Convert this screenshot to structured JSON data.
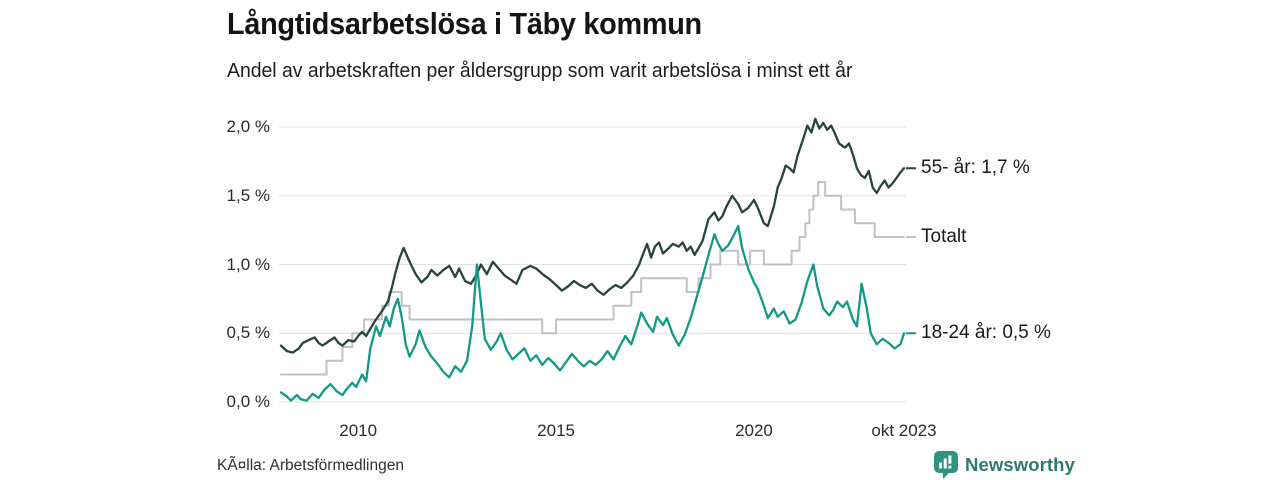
{
  "header": {
    "title": "Långtidsarbetslösa i Täby kommun",
    "subtitle": "Andel av arbetskraften per åldersgrupp som varit arbetslösa i minst ett år"
  },
  "footer": {
    "source": "KÃ¤lla: Arbetsförmedlingen",
    "brand": "Newsworthy"
  },
  "colors": {
    "series_55": "#26453c",
    "series_total": "#bfc0c8",
    "series_18_24": "#129a86",
    "gridline": "#e3e3e5",
    "brand_teal": "#2d7a72",
    "brand_icon": "#2f9283",
    "text": "#1a1a1a"
  },
  "chart_data": {
    "type": "line",
    "title": "Långtidsarbetslösa i Täby kommun",
    "subtitle": "Andel av arbetskraften per åldersgrupp som varit arbetslösa i minst ett år",
    "xlabel": "",
    "ylabel": "",
    "unit": "%",
    "grid": "horizontal",
    "legend_position": "right-end-labels",
    "x_axis": {
      "range": [
        2008.05,
        2023.79
      ],
      "ticks": [
        {
          "x": 2010,
          "label": "2010"
        },
        {
          "x": 2015,
          "label": "2015"
        },
        {
          "x": 2020,
          "label": "2020"
        },
        {
          "x": 2023.79,
          "label": "okt 2023"
        }
      ]
    },
    "y_axis": {
      "range": [
        0,
        2.0
      ],
      "ticks": [
        {
          "y": 0.0,
          "label": "0,0 %"
        },
        {
          "y": 0.5,
          "label": "0,5 %"
        },
        {
          "y": 1.0,
          "label": "1,0 %"
        },
        {
          "y": 1.5,
          "label": "1,5 %"
        },
        {
          "y": 2.0,
          "label": "2,0 %"
        }
      ]
    },
    "series": [
      {
        "name": "Totalt",
        "end_label": "Totalt",
        "color": "#bfc0c8",
        "step": true,
        "last_value": 1.2,
        "points": [
          [
            2008.05,
            0.2
          ],
          [
            2009.2,
            0.3
          ],
          [
            2009.6,
            0.4
          ],
          [
            2009.85,
            0.5
          ],
          [
            2010.15,
            0.6
          ],
          [
            2010.6,
            0.7
          ],
          [
            2010.78,
            0.8
          ],
          [
            2011.1,
            0.7
          ],
          [
            2011.3,
            0.6
          ],
          [
            2014.65,
            0.5
          ],
          [
            2015.0,
            0.6
          ],
          [
            2016.45,
            0.7
          ],
          [
            2016.9,
            0.8
          ],
          [
            2017.15,
            0.9
          ],
          [
            2018.3,
            0.8
          ],
          [
            2018.6,
            0.9
          ],
          [
            2018.9,
            1.0
          ],
          [
            2019.15,
            1.1
          ],
          [
            2019.6,
            1.0
          ],
          [
            2019.9,
            1.1
          ],
          [
            2020.25,
            1.0
          ],
          [
            2020.95,
            1.1
          ],
          [
            2021.15,
            1.2
          ],
          [
            2021.3,
            1.3
          ],
          [
            2021.4,
            1.4
          ],
          [
            2021.5,
            1.5
          ],
          [
            2021.62,
            1.6
          ],
          [
            2021.8,
            1.5
          ],
          [
            2022.2,
            1.4
          ],
          [
            2022.55,
            1.3
          ],
          [
            2023.05,
            1.2
          ],
          [
            2023.79,
            1.2
          ]
        ]
      },
      {
        "name": "55- år",
        "end_label": "55- år: 1,7 %",
        "color": "#26453c",
        "step": false,
        "last_value": 1.7,
        "points": [
          [
            2008.05,
            0.41
          ],
          [
            2008.2,
            0.37
          ],
          [
            2008.35,
            0.36
          ],
          [
            2008.5,
            0.39
          ],
          [
            2008.6,
            0.43
          ],
          [
            2008.75,
            0.45
          ],
          [
            2008.9,
            0.47
          ],
          [
            2009.0,
            0.43
          ],
          [
            2009.1,
            0.41
          ],
          [
            2009.25,
            0.44
          ],
          [
            2009.4,
            0.47
          ],
          [
            2009.5,
            0.43
          ],
          [
            2009.6,
            0.41
          ],
          [
            2009.75,
            0.45
          ],
          [
            2009.9,
            0.44
          ],
          [
            2010.0,
            0.48
          ],
          [
            2010.1,
            0.51
          ],
          [
            2010.2,
            0.48
          ],
          [
            2010.3,
            0.53
          ],
          [
            2010.45,
            0.6
          ],
          [
            2010.6,
            0.66
          ],
          [
            2010.75,
            0.73
          ],
          [
            2010.85,
            0.83
          ],
          [
            2010.95,
            0.95
          ],
          [
            2011.05,
            1.05
          ],
          [
            2011.15,
            1.12
          ],
          [
            2011.3,
            1.02
          ],
          [
            2011.45,
            0.93
          ],
          [
            2011.6,
            0.87
          ],
          [
            2011.75,
            0.91
          ],
          [
            2011.85,
            0.96
          ],
          [
            2012.0,
            0.92
          ],
          [
            2012.15,
            0.96
          ],
          [
            2012.3,
            0.99
          ],
          [
            2012.45,
            0.91
          ],
          [
            2012.55,
            0.97
          ],
          [
            2012.7,
            0.88
          ],
          [
            2012.85,
            0.86
          ],
          [
            2013.0,
            0.93
          ],
          [
            2013.1,
            1.0
          ],
          [
            2013.25,
            0.93
          ],
          [
            2013.4,
            1.02
          ],
          [
            2013.55,
            0.97
          ],
          [
            2013.7,
            0.92
          ],
          [
            2013.85,
            0.89
          ],
          [
            2014.0,
            0.86
          ],
          [
            2014.15,
            0.96
          ],
          [
            2014.35,
            0.99
          ],
          [
            2014.5,
            0.97
          ],
          [
            2014.7,
            0.92
          ],
          [
            2014.85,
            0.89
          ],
          [
            2015.0,
            0.85
          ],
          [
            2015.15,
            0.81
          ],
          [
            2015.3,
            0.84
          ],
          [
            2015.45,
            0.88
          ],
          [
            2015.6,
            0.85
          ],
          [
            2015.75,
            0.83
          ],
          [
            2015.9,
            0.86
          ],
          [
            2016.05,
            0.81
          ],
          [
            2016.2,
            0.78
          ],
          [
            2016.35,
            0.82
          ],
          [
            2016.5,
            0.85
          ],
          [
            2016.65,
            0.83
          ],
          [
            2016.8,
            0.87
          ],
          [
            2016.95,
            0.92
          ],
          [
            2017.1,
            1.0
          ],
          [
            2017.2,
            1.08
          ],
          [
            2017.3,
            1.15
          ],
          [
            2017.4,
            1.05
          ],
          [
            2017.5,
            1.13
          ],
          [
            2017.6,
            1.16
          ],
          [
            2017.7,
            1.08
          ],
          [
            2017.85,
            1.12
          ],
          [
            2017.95,
            1.15
          ],
          [
            2018.1,
            1.13
          ],
          [
            2018.2,
            1.16
          ],
          [
            2018.3,
            1.1
          ],
          [
            2018.4,
            1.13
          ],
          [
            2018.5,
            1.07
          ],
          [
            2018.6,
            1.12
          ],
          [
            2018.7,
            1.17
          ],
          [
            2018.85,
            1.33
          ],
          [
            2019.0,
            1.38
          ],
          [
            2019.1,
            1.32
          ],
          [
            2019.2,
            1.35
          ],
          [
            2019.3,
            1.42
          ],
          [
            2019.45,
            1.5
          ],
          [
            2019.6,
            1.44
          ],
          [
            2019.7,
            1.38
          ],
          [
            2019.85,
            1.41
          ],
          [
            2020.0,
            1.47
          ],
          [
            2020.1,
            1.41
          ],
          [
            2020.25,
            1.3
          ],
          [
            2020.35,
            1.28
          ],
          [
            2020.5,
            1.42
          ],
          [
            2020.6,
            1.56
          ],
          [
            2020.7,
            1.63
          ],
          [
            2020.8,
            1.72
          ],
          [
            2020.9,
            1.7
          ],
          [
            2021.0,
            1.67
          ],
          [
            2021.1,
            1.79
          ],
          [
            2021.25,
            1.92
          ],
          [
            2021.35,
            2.01
          ],
          [
            2021.45,
            1.96
          ],
          [
            2021.55,
            2.06
          ],
          [
            2021.65,
            1.99
          ],
          [
            2021.75,
            2.03
          ],
          [
            2021.85,
            1.98
          ],
          [
            2021.95,
            2.01
          ],
          [
            2022.05,
            1.95
          ],
          [
            2022.15,
            1.88
          ],
          [
            2022.3,
            1.85
          ],
          [
            2022.4,
            1.88
          ],
          [
            2022.5,
            1.8
          ],
          [
            2022.6,
            1.7
          ],
          [
            2022.7,
            1.65
          ],
          [
            2022.8,
            1.63
          ],
          [
            2022.9,
            1.68
          ],
          [
            2023.0,
            1.56
          ],
          [
            2023.1,
            1.52
          ],
          [
            2023.2,
            1.57
          ],
          [
            2023.3,
            1.61
          ],
          [
            2023.4,
            1.56
          ],
          [
            2023.5,
            1.59
          ],
          [
            2023.6,
            1.63
          ],
          [
            2023.7,
            1.67
          ],
          [
            2023.79,
            1.7
          ]
        ]
      },
      {
        "name": "18-24 år",
        "end_label": "18-24 år: 0,5 %",
        "color": "#129a86",
        "step": false,
        "last_value": 0.5,
        "points": [
          [
            2008.05,
            0.07
          ],
          [
            2008.2,
            0.04
          ],
          [
            2008.3,
            0.01
          ],
          [
            2008.45,
            0.05
          ],
          [
            2008.55,
            0.02
          ],
          [
            2008.7,
            0.01
          ],
          [
            2008.85,
            0.06
          ],
          [
            2009.0,
            0.03
          ],
          [
            2009.15,
            0.09
          ],
          [
            2009.3,
            0.13
          ],
          [
            2009.45,
            0.08
          ],
          [
            2009.6,
            0.05
          ],
          [
            2009.7,
            0.09
          ],
          [
            2009.85,
            0.14
          ],
          [
            2009.95,
            0.11
          ],
          [
            2010.1,
            0.2
          ],
          [
            2010.2,
            0.15
          ],
          [
            2010.3,
            0.38
          ],
          [
            2010.45,
            0.55
          ],
          [
            2010.55,
            0.48
          ],
          [
            2010.7,
            0.62
          ],
          [
            2010.8,
            0.55
          ],
          [
            2010.9,
            0.68
          ],
          [
            2011.0,
            0.75
          ],
          [
            2011.1,
            0.62
          ],
          [
            2011.2,
            0.42
          ],
          [
            2011.3,
            0.33
          ],
          [
            2011.45,
            0.42
          ],
          [
            2011.55,
            0.52
          ],
          [
            2011.7,
            0.4
          ],
          [
            2011.85,
            0.33
          ],
          [
            2012.0,
            0.28
          ],
          [
            2012.15,
            0.22
          ],
          [
            2012.3,
            0.18
          ],
          [
            2012.45,
            0.26
          ],
          [
            2012.6,
            0.22
          ],
          [
            2012.75,
            0.3
          ],
          [
            2012.88,
            0.55
          ],
          [
            2013.0,
            1.0
          ],
          [
            2013.1,
            0.72
          ],
          [
            2013.2,
            0.46
          ],
          [
            2013.35,
            0.38
          ],
          [
            2013.5,
            0.44
          ],
          [
            2013.6,
            0.5
          ],
          [
            2013.75,
            0.38
          ],
          [
            2013.9,
            0.31
          ],
          [
            2014.05,
            0.35
          ],
          [
            2014.2,
            0.39
          ],
          [
            2014.35,
            0.3
          ],
          [
            2014.5,
            0.34
          ],
          [
            2014.65,
            0.27
          ],
          [
            2014.8,
            0.32
          ],
          [
            2014.95,
            0.28
          ],
          [
            2015.1,
            0.23
          ],
          [
            2015.25,
            0.29
          ],
          [
            2015.4,
            0.35
          ],
          [
            2015.55,
            0.3
          ],
          [
            2015.7,
            0.26
          ],
          [
            2015.85,
            0.3
          ],
          [
            2016.0,
            0.27
          ],
          [
            2016.15,
            0.31
          ],
          [
            2016.3,
            0.37
          ],
          [
            2016.45,
            0.31
          ],
          [
            2016.6,
            0.4
          ],
          [
            2016.75,
            0.48
          ],
          [
            2016.9,
            0.42
          ],
          [
            2017.05,
            0.55
          ],
          [
            2017.15,
            0.65
          ],
          [
            2017.3,
            0.57
          ],
          [
            2017.45,
            0.51
          ],
          [
            2017.55,
            0.62
          ],
          [
            2017.7,
            0.56
          ],
          [
            2017.8,
            0.61
          ],
          [
            2017.95,
            0.49
          ],
          [
            2018.1,
            0.41
          ],
          [
            2018.25,
            0.49
          ],
          [
            2018.4,
            0.61
          ],
          [
            2018.55,
            0.76
          ],
          [
            2018.7,
            0.91
          ],
          [
            2018.85,
            1.07
          ],
          [
            2019.0,
            1.22
          ],
          [
            2019.1,
            1.15
          ],
          [
            2019.2,
            1.1
          ],
          [
            2019.35,
            1.14
          ],
          [
            2019.5,
            1.22
          ],
          [
            2019.6,
            1.28
          ],
          [
            2019.7,
            1.12
          ],
          [
            2019.85,
            0.97
          ],
          [
            2020.0,
            0.87
          ],
          [
            2020.1,
            0.82
          ],
          [
            2020.25,
            0.7
          ],
          [
            2020.35,
            0.61
          ],
          [
            2020.5,
            0.68
          ],
          [
            2020.6,
            0.62
          ],
          [
            2020.75,
            0.66
          ],
          [
            2020.9,
            0.57
          ],
          [
            2021.05,
            0.6
          ],
          [
            2021.2,
            0.72
          ],
          [
            2021.35,
            0.88
          ],
          [
            2021.5,
            1.0
          ],
          [
            2021.6,
            0.84
          ],
          [
            2021.75,
            0.68
          ],
          [
            2021.9,
            0.63
          ],
          [
            2022.0,
            0.67
          ],
          [
            2022.1,
            0.73
          ],
          [
            2022.25,
            0.69
          ],
          [
            2022.35,
            0.73
          ],
          [
            2022.5,
            0.6
          ],
          [
            2022.6,
            0.55
          ],
          [
            2022.72,
            0.86
          ],
          [
            2022.85,
            0.68
          ],
          [
            2022.95,
            0.5
          ],
          [
            2023.1,
            0.42
          ],
          [
            2023.25,
            0.46
          ],
          [
            2023.4,
            0.43
          ],
          [
            2023.55,
            0.39
          ],
          [
            2023.7,
            0.42
          ],
          [
            2023.79,
            0.5
          ]
        ]
      }
    ]
  }
}
